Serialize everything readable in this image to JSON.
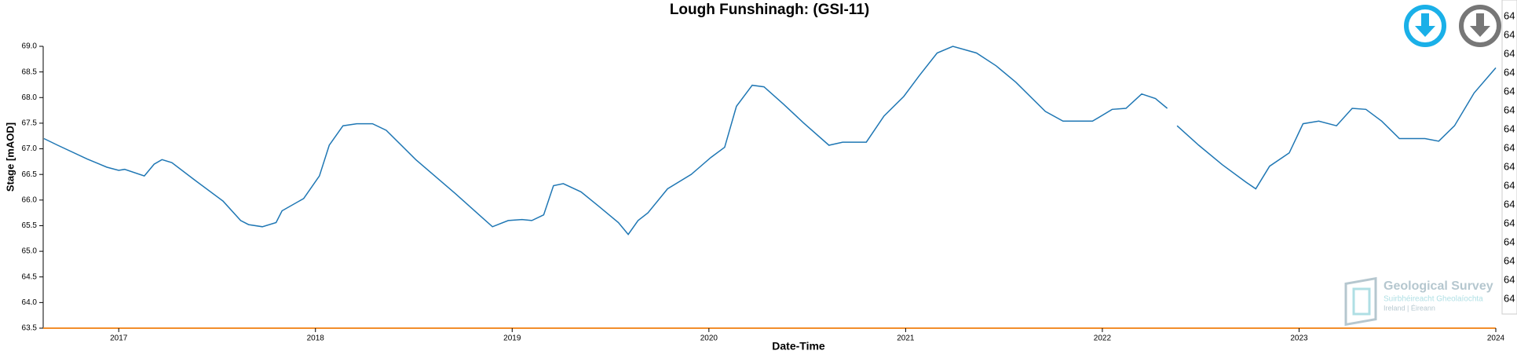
{
  "chart_data": {
    "type": "line",
    "title": "Lough Funshinagh: (GSI-11)",
    "x_label": "Date-Time",
    "y_label": "Stage [mAOD]",
    "color": "#1f77b4",
    "x": [
      2016.62,
      2016.69,
      2016.84,
      2016.94,
      2017.0,
      2017.03,
      2017.13,
      2017.18,
      2017.22,
      2017.27,
      2017.38,
      2017.53,
      2017.62,
      2017.66,
      2017.73,
      2017.8,
      2017.83,
      2017.94,
      2018.02,
      2018.07,
      2018.14,
      2018.21,
      2018.29,
      2018.36,
      2018.51,
      2018.71,
      2018.85,
      2018.9,
      2018.98,
      2019.05,
      2019.1,
      2019.16,
      2019.21,
      2019.26,
      2019.35,
      2019.44,
      2019.54,
      2019.59,
      2019.64,
      2019.69,
      2019.79,
      2019.91,
      2020.01,
      2020.08,
      2020.14,
      2020.22,
      2020.28,
      2020.38,
      2020.48,
      2020.61,
      2020.68,
      2020.8,
      2020.89,
      2020.99,
      2021.07,
      2021.16,
      2021.24,
      2021.36,
      2021.46,
      2021.56,
      2021.71,
      2021.8,
      2021.95,
      2022.05,
      2022.12,
      2022.2,
      2022.27,
      2022.33,
      2022.35,
      2022.38,
      2022.49,
      2022.61,
      2022.73,
      2022.78,
      2022.85,
      2022.95,
      2023.02,
      2023.1,
      2023.19,
      2023.27,
      2023.34,
      2023.42,
      2023.51,
      2023.64,
      2023.71,
      2023.79,
      2023.89,
      2024.0
    ],
    "values": [
      67.2,
      67.07,
      66.8,
      66.64,
      66.58,
      66.6,
      66.47,
      66.7,
      66.79,
      66.73,
      66.41,
      65.98,
      65.6,
      65.52,
      65.48,
      65.56,
      65.79,
      66.03,
      66.47,
      67.07,
      67.45,
      67.49,
      67.49,
      67.36,
      66.79,
      66.13,
      65.65,
      65.48,
      65.6,
      65.62,
      65.6,
      65.71,
      66.28,
      66.32,
      66.16,
      65.88,
      65.56,
      65.33,
      65.6,
      65.75,
      66.22,
      66.5,
      66.83,
      67.03,
      67.83,
      68.24,
      68.21,
      67.87,
      67.51,
      67.07,
      67.13,
      67.13,
      67.64,
      68.02,
      68.43,
      68.87,
      69.0,
      68.87,
      68.62,
      68.3,
      67.73,
      67.54,
      67.54,
      67.77,
      67.79,
      68.07,
      67.98,
      67.79,
      null,
      67.45,
      67.07,
      66.69,
      66.35,
      66.22,
      66.66,
      66.92,
      67.49,
      67.54,
      67.45,
      67.79,
      67.77,
      67.54,
      67.2,
      67.2,
      67.15,
      67.45,
      68.09,
      68.58
    ],
    "xlim": [
      2016.616,
      2024
    ],
    "xticks": [
      2017,
      2018,
      2019,
      2020,
      2021,
      2022,
      2023,
      2024
    ],
    "ylim": [
      63.5,
      69
    ],
    "yticks": [
      63.5,
      {
        "value": 64,
        "label": "64.0"
      },
      64.5,
      {
        "value": 65,
        "label": "65.0"
      },
      65.5,
      {
        "value": 66,
        "label": "66.0"
      },
      66.5,
      {
        "value": 67,
        "label": "67.0"
      },
      67.5,
      {
        "value": 68,
        "label": "68.0"
      },
      68.5,
      {
        "value": 69,
        "label": "69.0"
      }
    ]
  },
  "side_panel": [
    "64",
    "64",
    "64",
    "64",
    "64",
    "64",
    "64",
    "64",
    "64",
    "64",
    "64",
    "64",
    "64",
    "64",
    "64",
    "64"
  ],
  "logo": {
    "title": "Geological Survey",
    "subtitle": "Suirbhéireacht Gheolaíochta",
    "tagline": "Ireland | Éireann"
  }
}
